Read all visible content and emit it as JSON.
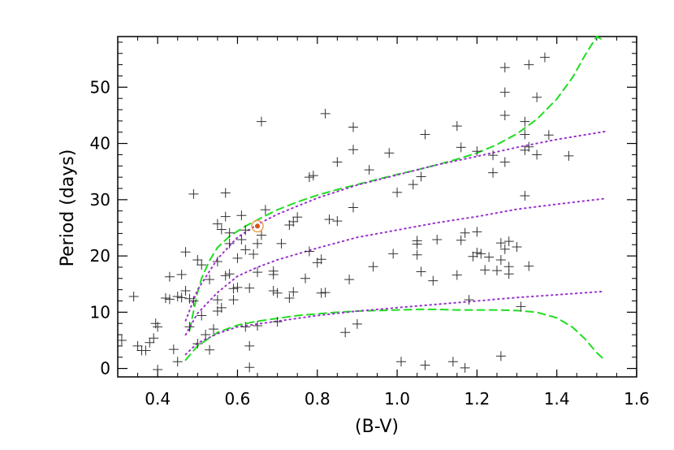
{
  "chart_data": {
    "type": "scatter",
    "title": "",
    "xlabel": "(B-V)",
    "ylabel": "Period (days)",
    "xlim": [
      0.3,
      1.6
    ],
    "ylim": [
      -1.5,
      59
    ],
    "x_ticks": [
      0.4,
      0.6,
      0.8,
      1.0,
      1.2,
      1.4,
      1.6
    ],
    "x_tick_labels": [
      "0.4",
      "0.6",
      "0.8",
      "1.0",
      "1.2",
      "1.4",
      "1.6"
    ],
    "y_ticks": [
      0,
      10,
      20,
      30,
      40,
      50
    ],
    "y_tick_labels": [
      "0",
      "10",
      "20",
      "30",
      "40",
      "50"
    ],
    "grid": false,
    "colors": {
      "points": "#333333",
      "dashed": "#22dd22",
      "dotted": "#9933cc",
      "highlight_ring": "#f0a050",
      "highlight_dot": "#d2551e"
    },
    "series": [
      {
        "marker": "plus",
        "points": [
          [
            0.31,
            5
          ],
          [
            0.34,
            12.8
          ],
          [
            0.35,
            4
          ],
          [
            0.36,
            3.2
          ],
          [
            0.37,
            3.2
          ],
          [
            0.38,
            4.6
          ],
          [
            0.39,
            5.4
          ],
          [
            0.395,
            8
          ],
          [
            0.4,
            -0.2
          ],
          [
            0.4,
            7.4
          ],
          [
            0.42,
            12.5
          ],
          [
            0.43,
            16.3
          ],
          [
            0.43,
            12.3
          ],
          [
            0.45,
            12.8
          ],
          [
            0.44,
            3.4
          ],
          [
            0.45,
            1.2
          ],
          [
            0.46,
            12.6
          ],
          [
            0.46,
            16.7
          ],
          [
            0.47,
            20.7
          ],
          [
            0.47,
            13.8
          ],
          [
            0.48,
            7.4
          ],
          [
            0.48,
            12.4
          ],
          [
            0.49,
            31
          ],
          [
            0.49,
            12
          ],
          [
            0.5,
            4.4
          ],
          [
            0.5,
            19.3
          ],
          [
            0.51,
            18.4
          ],
          [
            0.51,
            9.4
          ],
          [
            0.52,
            6
          ],
          [
            0.53,
            3.3
          ],
          [
            0.53,
            15.8
          ],
          [
            0.54,
            7
          ],
          [
            0.55,
            25.7
          ],
          [
            0.55,
            19
          ],
          [
            0.55,
            12.2
          ],
          [
            0.55,
            10.2
          ],
          [
            0.56,
            24.7
          ],
          [
            0.56,
            10.8
          ],
          [
            0.57,
            31.2
          ],
          [
            0.57,
            27
          ],
          [
            0.57,
            16.5
          ],
          [
            0.58,
            22.2
          ],
          [
            0.58,
            24.1
          ],
          [
            0.58,
            16.8
          ],
          [
            0.59,
            14.2
          ],
          [
            0.59,
            12.2
          ],
          [
            0.6,
            19.6
          ],
          [
            0.6,
            14.4
          ],
          [
            0.61,
            27.2
          ],
          [
            0.61,
            22.9
          ],
          [
            0.62,
            24.6
          ],
          [
            0.62,
            21.1
          ],
          [
            0.62,
            7.4
          ],
          [
            0.63,
            4
          ],
          [
            0.63,
            0.2
          ],
          [
            0.63,
            14.3
          ],
          [
            0.64,
            20.3
          ],
          [
            0.65,
            17.1
          ],
          [
            0.65,
            22.2
          ],
          [
            0.65,
            7.6
          ],
          [
            0.66,
            43.9
          ],
          [
            0.66,
            23.7
          ],
          [
            0.67,
            28.2
          ],
          [
            0.69,
            13.8
          ],
          [
            0.69,
            16.7
          ],
          [
            0.69,
            17.3
          ],
          [
            0.7,
            8.3
          ],
          [
            0.7,
            13.4
          ],
          [
            0.71,
            22.2
          ],
          [
            0.73,
            12.5
          ],
          [
            0.73,
            25.5
          ],
          [
            0.74,
            13.6
          ],
          [
            0.74,
            26.1
          ],
          [
            0.75,
            26.9
          ],
          [
            0.77,
            16
          ],
          [
            0.78,
            20.8
          ],
          [
            0.78,
            34
          ],
          [
            0.79,
            34.3
          ],
          [
            0.8,
            18.8
          ],
          [
            0.81,
            19.4
          ],
          [
            0.81,
            13.4
          ],
          [
            0.82,
            45.3
          ],
          [
            0.82,
            13.5
          ],
          [
            0.83,
            26.5
          ],
          [
            0.85,
            36.7
          ],
          [
            0.85,
            26.2
          ],
          [
            0.87,
            6.4
          ],
          [
            0.88,
            15.8
          ],
          [
            0.89,
            42.9
          ],
          [
            0.89,
            28.6
          ],
          [
            0.89,
            38.9
          ],
          [
            0.9,
            7.9
          ],
          [
            0.93,
            35.3
          ],
          [
            0.94,
            18.1
          ],
          [
            0.98,
            38.3
          ],
          [
            0.99,
            20.4
          ],
          [
            1.0,
            31.3
          ],
          [
            1.01,
            1.2
          ],
          [
            1.04,
            32.7
          ],
          [
            1.05,
            22.1
          ],
          [
            1.05,
            22.7
          ],
          [
            1.05,
            20.2
          ],
          [
            1.06,
            34.1
          ],
          [
            1.06,
            17.2
          ],
          [
            1.07,
            0.6
          ],
          [
            1.07,
            41.6
          ],
          [
            1.09,
            15.6
          ],
          [
            1.1,
            22.9
          ],
          [
            1.14,
            1.2
          ],
          [
            1.15,
            16.6
          ],
          [
            1.15,
            43.1
          ],
          [
            1.16,
            39.3
          ],
          [
            1.16,
            22.8
          ],
          [
            1.17,
            24.1
          ],
          [
            1.17,
            0.1
          ],
          [
            1.18,
            12.2
          ],
          [
            1.19,
            19.9
          ],
          [
            1.2,
            24.3
          ],
          [
            1.2,
            38.6
          ],
          [
            1.2,
            20.6
          ],
          [
            1.21,
            20.4
          ],
          [
            1.22,
            17.5
          ],
          [
            1.23,
            19.8
          ],
          [
            1.24,
            34.8
          ],
          [
            1.24,
            37.9
          ],
          [
            1.25,
            17.4
          ],
          [
            1.26,
            2.2
          ],
          [
            1.26,
            22.3
          ],
          [
            1.26,
            19.3
          ],
          [
            1.27,
            45
          ],
          [
            1.27,
            36.7
          ],
          [
            1.27,
            53.5
          ],
          [
            1.27,
            49.1
          ],
          [
            1.27,
            21.2
          ],
          [
            1.28,
            16.8
          ],
          [
            1.28,
            22.6
          ],
          [
            1.28,
            18.1
          ],
          [
            1.3,
            21.6
          ],
          [
            1.31,
            11
          ],
          [
            1.32,
            43.9
          ],
          [
            1.32,
            38.8
          ],
          [
            1.32,
            41.6
          ],
          [
            1.32,
            30.7
          ],
          [
            1.33,
            54
          ],
          [
            1.33,
            39.4
          ],
          [
            1.33,
            18.2
          ],
          [
            1.35,
            38
          ],
          [
            1.35,
            48.2
          ],
          [
            1.37,
            55.3
          ],
          [
            1.38,
            41.5
          ],
          [
            1.43,
            37.8
          ]
        ]
      },
      {
        "name": "",
        "style": "dashed",
        "points": [
          [
            0.48,
            6.8
          ],
          [
            0.49,
            10.2
          ],
          [
            0.5,
            13.5
          ],
          [
            0.51,
            16
          ],
          [
            0.53,
            19.2
          ],
          [
            0.55,
            21.5
          ],
          [
            0.58,
            23.5
          ],
          [
            0.62,
            25.3
          ],
          [
            0.66,
            26.8
          ],
          [
            0.7,
            28.2
          ],
          [
            0.75,
            29.6
          ],
          [
            0.8,
            30.8
          ],
          [
            0.85,
            31.8
          ],
          [
            0.9,
            32.7
          ],
          [
            0.95,
            33.6
          ],
          [
            1.0,
            34.5
          ],
          [
            1.05,
            35.3
          ],
          [
            1.1,
            36.2
          ],
          [
            1.15,
            37.2
          ],
          [
            1.2,
            38.3
          ],
          [
            1.25,
            39.8
          ],
          [
            1.3,
            41.7
          ],
          [
            1.35,
            44.3
          ],
          [
            1.4,
            47.9
          ],
          [
            1.44,
            51.8
          ],
          [
            1.47,
            55.6
          ],
          [
            1.5,
            59
          ],
          [
            1.52,
            58.2
          ]
        ]
      },
      {
        "name": "",
        "style": "dashed",
        "points": [
          [
            0.47,
            1.5
          ],
          [
            0.5,
            4
          ],
          [
            0.55,
            6.4
          ],
          [
            0.6,
            7.7
          ],
          [
            0.65,
            8.4
          ],
          [
            0.7,
            8.9
          ],
          [
            0.75,
            9.4
          ],
          [
            0.8,
            9.7
          ],
          [
            0.85,
            10
          ],
          [
            0.9,
            10.2
          ],
          [
            0.95,
            10.3
          ],
          [
            1.0,
            10.4
          ],
          [
            1.05,
            10.5
          ],
          [
            1.1,
            10.5
          ],
          [
            1.15,
            10.4
          ],
          [
            1.2,
            10.4
          ],
          [
            1.25,
            10.4
          ],
          [
            1.3,
            10.3
          ],
          [
            1.35,
            10
          ],
          [
            1.4,
            9
          ],
          [
            1.44,
            7.3
          ],
          [
            1.47,
            5.3
          ],
          [
            1.5,
            2.8
          ],
          [
            1.52,
            1.5
          ]
        ]
      },
      {
        "name": "",
        "style": "dotted",
        "points": [
          [
            0.47,
            8.5
          ],
          [
            0.5,
            14
          ],
          [
            0.55,
            19.5
          ],
          [
            0.6,
            23.3
          ],
          [
            0.65,
            25.6
          ],
          [
            0.7,
            27.4
          ],
          [
            0.8,
            30.3
          ],
          [
            0.9,
            32.6
          ],
          [
            1.0,
            34.4
          ],
          [
            1.1,
            36.2
          ],
          [
            1.2,
            37.7
          ],
          [
            1.3,
            39.3
          ],
          [
            1.4,
            40.7
          ],
          [
            1.52,
            42.1
          ]
        ]
      },
      {
        "name": "",
        "style": "dotted",
        "points": [
          [
            0.47,
            6
          ],
          [
            0.5,
            9.8
          ],
          [
            0.55,
            13.5
          ],
          [
            0.6,
            16.4
          ],
          [
            0.65,
            18
          ],
          [
            0.7,
            19.3
          ],
          [
            0.8,
            21.4
          ],
          [
            0.9,
            23.3
          ],
          [
            1.0,
            24.6
          ],
          [
            1.1,
            25.9
          ],
          [
            1.2,
            27
          ],
          [
            1.3,
            28.3
          ],
          [
            1.4,
            29.2
          ],
          [
            1.52,
            30.2
          ]
        ]
      },
      {
        "name": "",
        "style": "dotted",
        "points": [
          [
            0.47,
            2.5
          ],
          [
            0.5,
            4.5
          ],
          [
            0.55,
            6.2
          ],
          [
            0.6,
            7.4
          ],
          [
            0.65,
            7.9
          ],
          [
            0.7,
            8.4
          ],
          [
            0.8,
            9.4
          ],
          [
            0.9,
            10.2
          ],
          [
            1.0,
            10.8
          ],
          [
            1.1,
            11.4
          ],
          [
            1.2,
            12
          ],
          [
            1.3,
            12.6
          ],
          [
            1.4,
            13.1
          ],
          [
            1.52,
            13.7
          ]
        ]
      }
    ],
    "highlight": {
      "x": 0.65,
      "y": 25.3
    }
  }
}
